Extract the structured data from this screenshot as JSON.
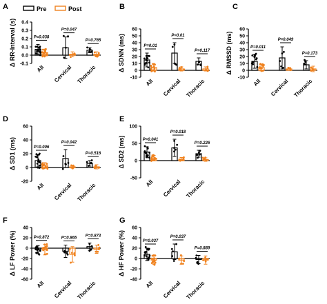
{
  "legend": {
    "items": [
      {
        "label": "Pre",
        "color": "#000000"
      },
      {
        "label": "Post",
        "color": "#f0821e"
      }
    ]
  },
  "colors": {
    "pre": "#000000",
    "post": "#f0821e"
  },
  "chart_data": [
    {
      "panel": "A",
      "type": "bar",
      "ylabel": "Δ RR-Interval (s)",
      "ylim": [
        -0.1,
        0.4
      ],
      "yticks": [
        -0.1,
        0.0,
        0.1,
        0.2,
        0.3,
        0.4
      ],
      "categories": [
        "All",
        "Cervical",
        "Thoracic"
      ],
      "series": [
        {
          "name": "Pre",
          "values": [
            0.07,
            0.09,
            0.06
          ],
          "errors": [
            0.06,
            0.13,
            0.03
          ]
        },
        {
          "name": "Post",
          "values": [
            0.03,
            0.01,
            0.01
          ],
          "errors": [
            0.04,
            0.03,
            0.03
          ]
        }
      ],
      "pvalues": [
        "P=0.038",
        "P=0.047",
        "P=0.765"
      ]
    },
    {
      "panel": "B",
      "type": "bar",
      "ylabel": "Δ SDNN (ms)",
      "ylim": [
        -10,
        60
      ],
      "yticks": [
        -10,
        0,
        10,
        20,
        30,
        40,
        50,
        60
      ],
      "categories": [
        "All",
        "Cervical",
        "Thoracic"
      ],
      "series": [
        {
          "name": "Pre",
          "values": [
            15,
            25,
            13
          ],
          "errors": [
            10,
            15,
            5
          ]
        },
        {
          "name": "Post",
          "values": [
            4,
            2,
            2
          ],
          "errors": [
            5,
            3,
            3
          ]
        }
      ],
      "pvalues": [
        "P=0.01",
        "P=0.01",
        "P=0.117"
      ]
    },
    {
      "panel": "C",
      "type": "bar",
      "ylabel": "Δ RMSSD (ms)",
      "ylim": [
        -10,
        60
      ],
      "yticks": [
        -10,
        0,
        10,
        20,
        30,
        40,
        50,
        60
      ],
      "categories": [
        "All",
        "Cervical",
        "Thoracic"
      ],
      "series": [
        {
          "name": "Pre",
          "values": [
            13,
            18,
            8
          ],
          "errors": [
            10,
            16,
            6
          ]
        },
        {
          "name": "Post",
          "values": [
            4,
            2,
            2
          ],
          "errors": [
            5,
            2,
            4
          ]
        }
      ],
      "pvalues": [
        "P=0.011",
        "P=0.049",
        "P=0.173"
      ]
    },
    {
      "panel": "D",
      "type": "bar",
      "ylabel": "Δ SD1 (ms)",
      "ylim": [
        -20,
        60
      ],
      "yticks": [
        -20,
        0,
        20,
        40,
        60
      ],
      "categories": [
        "All",
        "Cervical",
        "Thoracic"
      ],
      "series": [
        {
          "name": "Pre",
          "values": [
            10,
            13,
            6
          ],
          "errors": [
            9,
            13,
            4
          ]
        },
        {
          "name": "Post",
          "values": [
            3,
            1,
            1
          ],
          "errors": [
            4,
            2,
            3
          ]
        }
      ],
      "pvalues": [
        "P=0.006",
        "P=0.042",
        "P=0.516"
      ]
    },
    {
      "panel": "E",
      "type": "bar",
      "ylabel": "Δ SD2 (ms)",
      "ylim": [
        -50,
        100
      ],
      "yticks": [
        -50,
        0,
        50,
        100
      ],
      "categories": [
        "All",
        "Cervical",
        "Thoracic"
      ],
      "series": [
        {
          "name": "Pre",
          "values": [
            25,
            37,
            20
          ],
          "errors": [
            15,
            25,
            10
          ]
        },
        {
          "name": "Post",
          "values": [
            7,
            4,
            3
          ],
          "errors": [
            8,
            5,
            5
          ]
        }
      ],
      "pvalues": [
        "P=0.041",
        "P=0.018",
        "P=0.226"
      ]
    },
    {
      "panel": "F",
      "type": "bar",
      "ylabel": "Δ LF Power (%)",
      "ylim": [
        -60,
        40
      ],
      "yticks": [
        -60,
        -40,
        -20,
        0,
        20,
        40
      ],
      "categories": [
        "All",
        "Cervical",
        "Thoracic"
      ],
      "series": [
        {
          "name": "Pre",
          "values": [
            -3,
            -6,
            3
          ],
          "errors": [
            8,
            12,
            7
          ]
        },
        {
          "name": "Post",
          "values": [
            -3,
            -12,
            -2
          ],
          "errors": [
            10,
            15,
            8
          ]
        }
      ],
      "pvalues": [
        "P=0.872",
        "P=0.865",
        "P=0.873"
      ]
    },
    {
      "panel": "G",
      "type": "bar",
      "ylabel": "Δ HF Power (%)",
      "ylim": [
        -40,
        60
      ],
      "yticks": [
        -40,
        -20,
        0,
        20,
        40,
        60
      ],
      "categories": [
        "All",
        "Cervical",
        "Thoracic"
      ],
      "series": [
        {
          "name": "Pre",
          "values": [
            8,
            13,
            -2
          ],
          "errors": [
            12,
            15,
            8
          ]
        },
        {
          "name": "Post",
          "values": [
            -3,
            -3,
            -3
          ],
          "errors": [
            8,
            8,
            8
          ]
        }
      ],
      "pvalues": [
        "P=0.037",
        "P=0.037",
        "P=0.889"
      ]
    }
  ]
}
